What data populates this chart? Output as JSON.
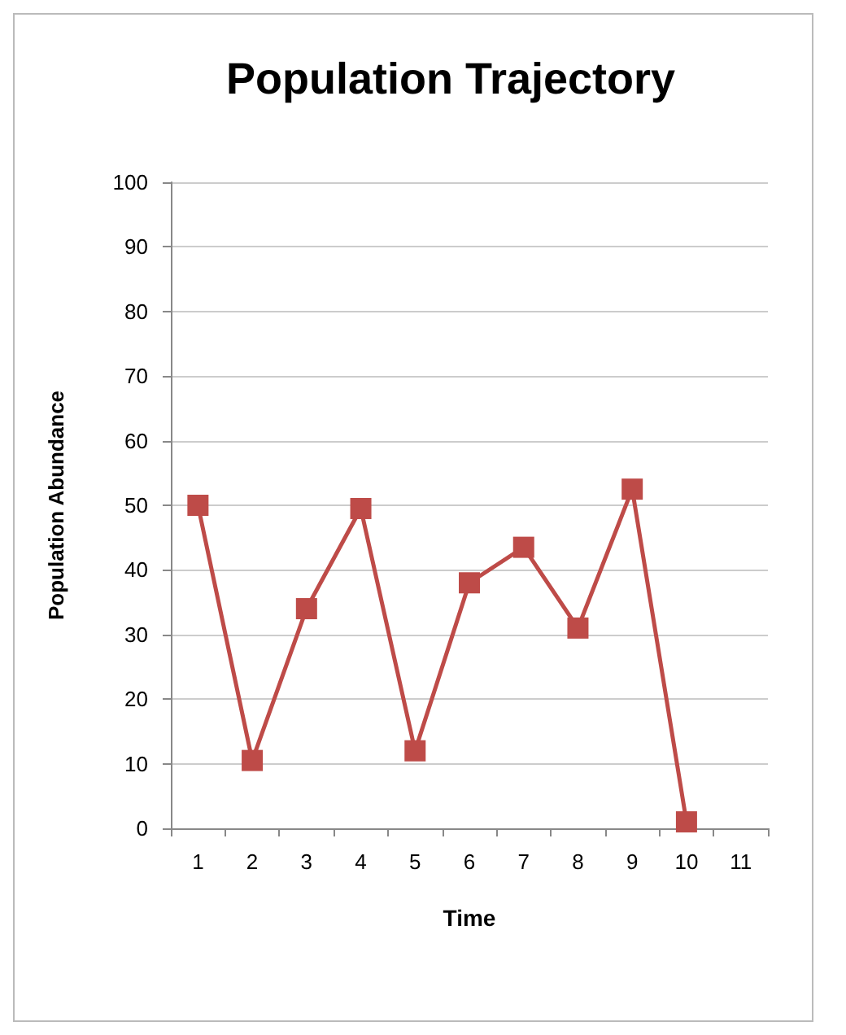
{
  "chart_data": {
    "type": "line",
    "title": "Population Trajectory",
    "xlabel": "Time",
    "ylabel": "Population Abundance",
    "categories": [
      "1",
      "2",
      "3",
      "4",
      "5",
      "6",
      "7",
      "8",
      "9",
      "10",
      "11"
    ],
    "series": [
      {
        "color": "#be4b48",
        "values": [
          50,
          10.5,
          34,
          49.5,
          12,
          38,
          43.5,
          31,
          52.5,
          1,
          null
        ]
      }
    ],
    "ylim": [
      0,
      100
    ],
    "yticks": [
      0,
      10,
      20,
      30,
      40,
      50,
      60,
      70,
      80,
      90,
      100
    ],
    "grid": "y",
    "marker": "square",
    "line_style": "solid"
  }
}
